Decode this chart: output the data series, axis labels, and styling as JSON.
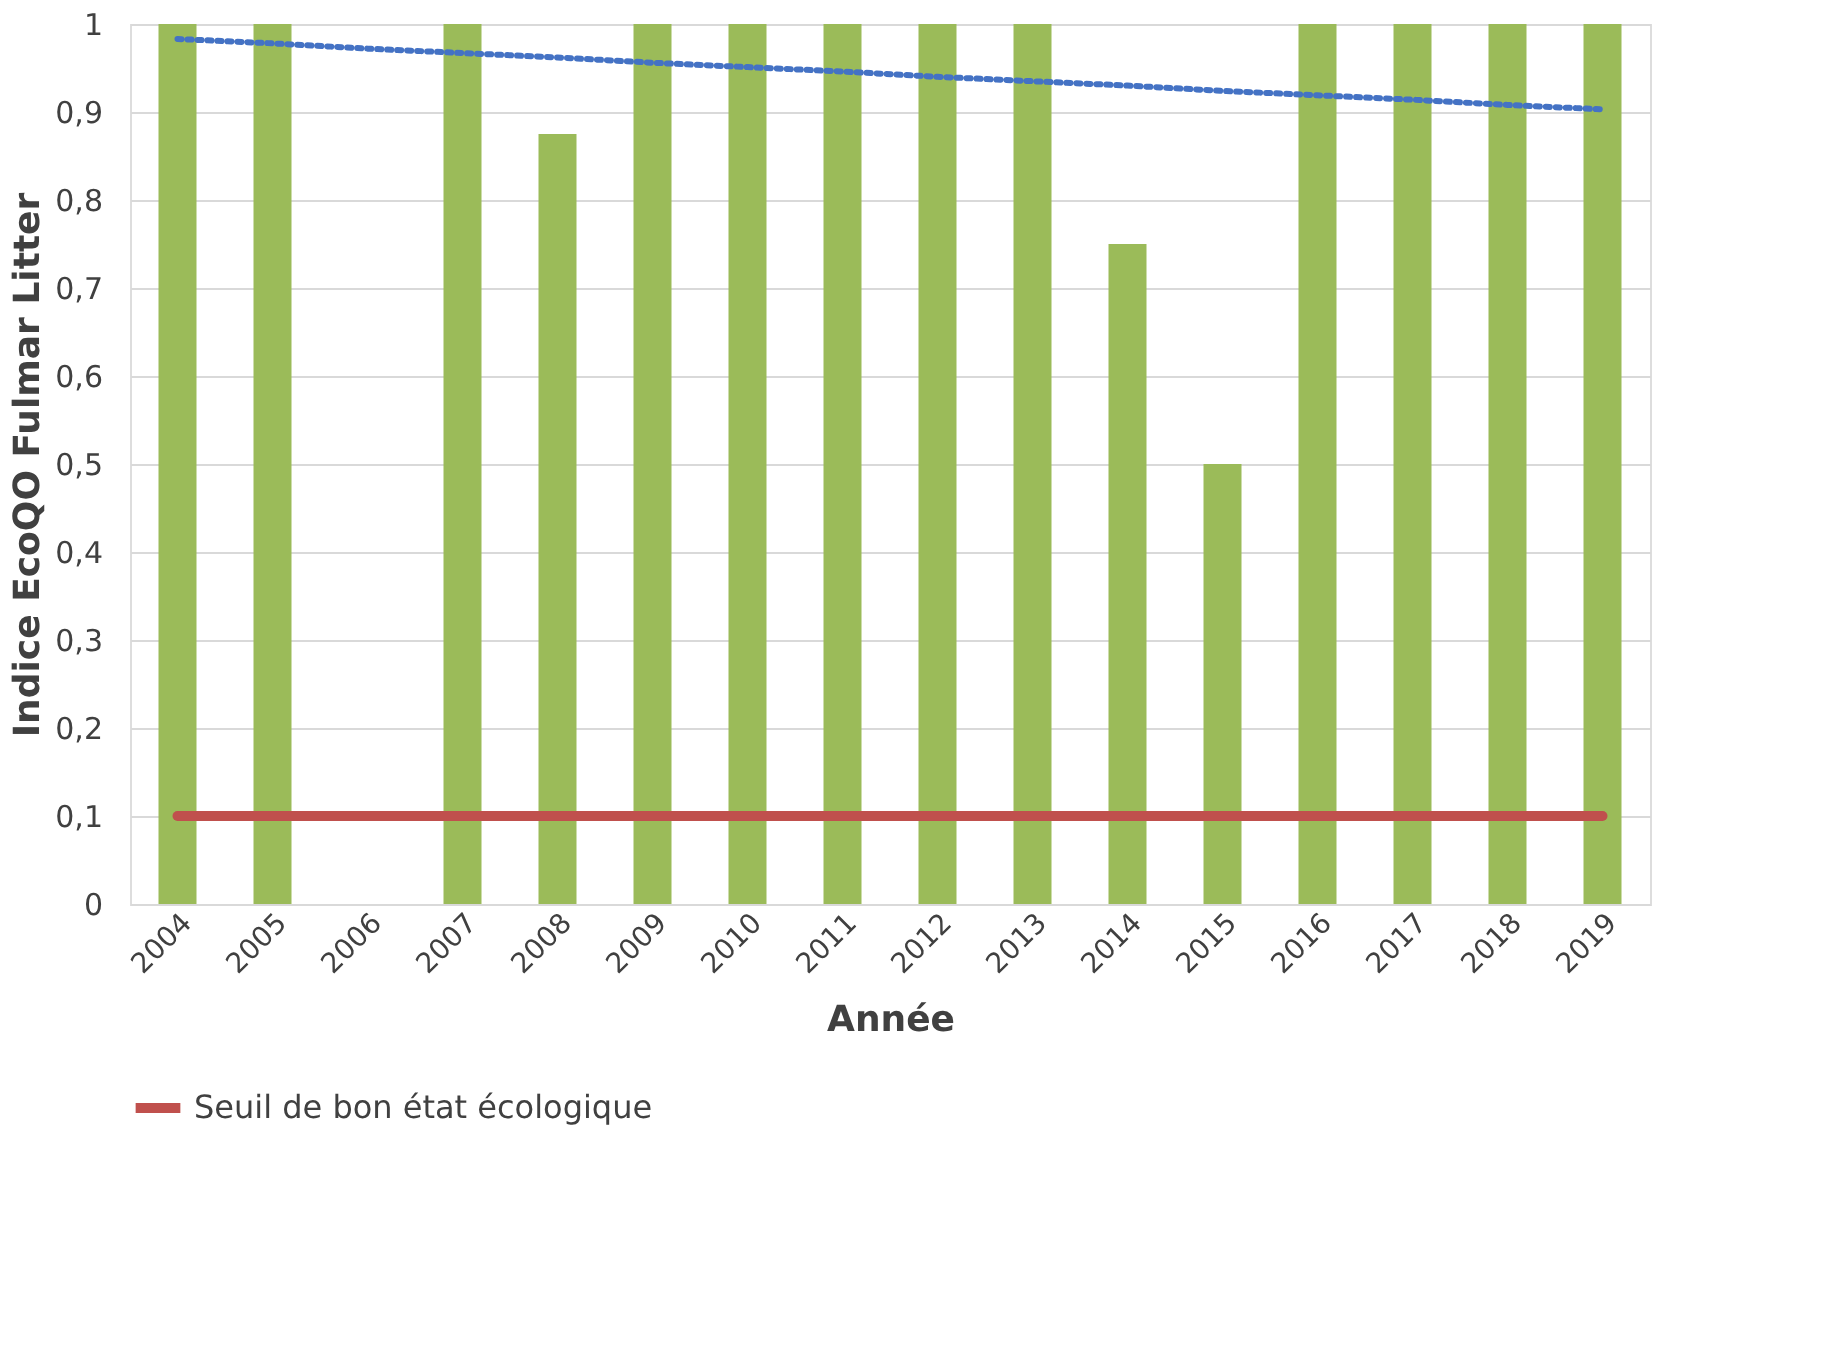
{
  "chart_data": {
    "type": "bar",
    "xlabel": "Année",
    "ylabel": "Indice EcoQO Fulmar Litter",
    "categories": [
      "2004",
      "2005",
      "2006",
      "2007",
      "2008",
      "2009",
      "2010",
      "2011",
      "2012",
      "2013",
      "2014",
      "2015",
      "2016",
      "2017",
      "2018",
      "2019"
    ],
    "series": [
      {
        "color": "#9bbb59",
        "values": [
          1,
          1,
          null,
          1,
          0.875,
          1,
          1,
          1,
          1,
          1,
          0.75,
          0.5,
          1,
          1,
          1,
          1
        ]
      },
      {
        "type": "line",
        "color": "#4472c4",
        "line_style": "dotted",
        "values": [
          0.983,
          0.978,
          0.972,
          0.967,
          0.962,
          0.956,
          0.951,
          0.946,
          0.94,
          0.935,
          0.93,
          0.924,
          0.919,
          0.914,
          0.908,
          0.903
        ]
      },
      {
        "type": "line",
        "name": "Seuil de bon état écologique",
        "color": "#c0504d",
        "line_style": "solid",
        "values": [
          0.1,
          0.1,
          0.1,
          0.1,
          0.1,
          0.1,
          0.1,
          0.1,
          0.1,
          0.1,
          0.1,
          0.1,
          0.1,
          0.1,
          0.1,
          0.1
        ]
      }
    ],
    "ylim": [
      0,
      1
    ],
    "yticks": [
      0,
      {
        "value": 0.1,
        "label": "0,1"
      },
      {
        "value": 0.2,
        "label": "0,2"
      },
      {
        "value": 0.3,
        "label": "0,3"
      },
      {
        "value": 0.4,
        "label": "0,4"
      },
      {
        "value": 0.5,
        "label": "0,5"
      },
      {
        "value": 0.6,
        "label": "0,6"
      },
      {
        "value": 0.7,
        "label": "0,7"
      },
      {
        "value": 0.8,
        "label": "0,8"
      },
      {
        "value": 0.9,
        "label": "0,9"
      },
      1
    ],
    "grid": "y",
    "legend": "bottom left"
  }
}
